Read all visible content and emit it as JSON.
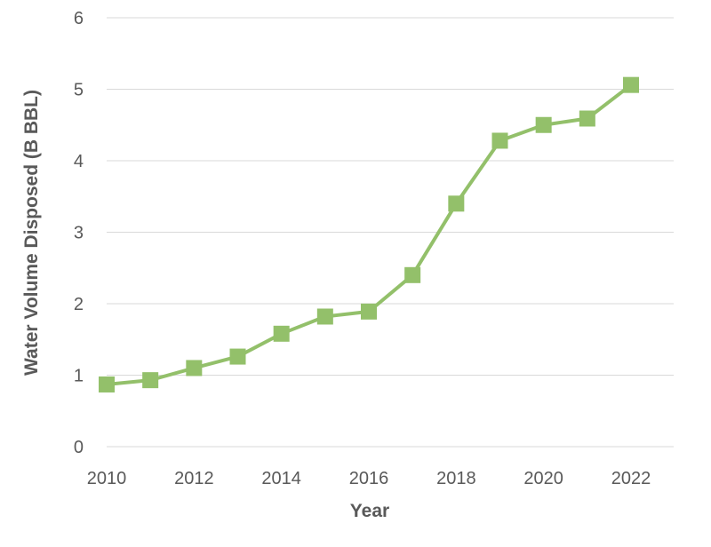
{
  "chart_data": {
    "type": "line",
    "title": "",
    "xlabel": "Year",
    "ylabel": "Water Volume Disposed (B BBL)",
    "x": [
      2010,
      2011,
      2012,
      2013,
      2014,
      2015,
      2016,
      2017,
      2018,
      2019,
      2020,
      2021,
      2022
    ],
    "series": [
      {
        "values": [
          0.87,
          0.93,
          1.1,
          1.26,
          1.58,
          1.82,
          1.89,
          2.4,
          3.4,
          4.28,
          4.5,
          4.59,
          5.06
        ]
      }
    ],
    "x_ticks": [
      "2010",
      "2012",
      "2014",
      "2016",
      "2018",
      "2020",
      "2022"
    ],
    "y_ticks": [
      "0",
      "1",
      "2",
      "3",
      "4",
      "5",
      "6"
    ],
    "ylim": [
      0,
      6
    ],
    "xlim": [
      2010,
      2022
    ],
    "grid": true,
    "legend": "none",
    "marker": "square",
    "series_color": "#93c06a",
    "grid_color": "#d9d9d9",
    "text_color": "#595959"
  }
}
